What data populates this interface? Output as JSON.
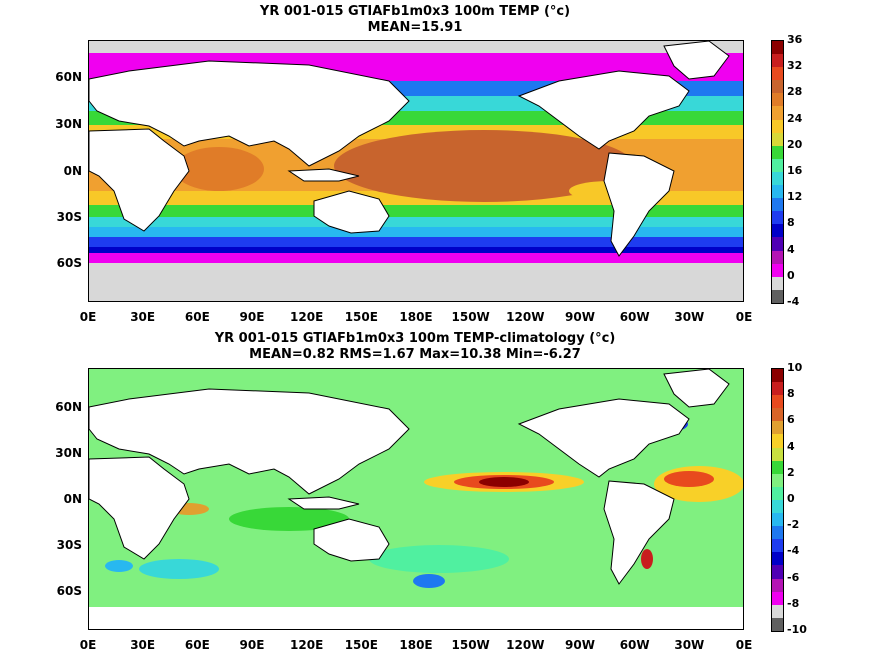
{
  "chart_data": [
    {
      "type": "heatmap",
      "title": "YR 001-015 GTIAFb1m0x3 100m TEMP (°c)",
      "subtitle": "MEAN=15.91",
      "x_ticks": [
        "0E",
        "30E",
        "60E",
        "90E",
        "120E",
        "150E",
        "180E",
        "150W",
        "120W",
        "90W",
        "60W",
        "30W",
        "0E"
      ],
      "y_ticks": [
        "60N",
        "30N",
        "0N",
        "30S",
        "60S"
      ],
      "colorbar_ticks": [
        "36",
        "32",
        "28",
        "24",
        "20",
        "16",
        "12",
        "8",
        "4",
        "0",
        "-4"
      ],
      "colorbar_colors": [
        "#8b0000",
        "#c81e1e",
        "#e84a1e",
        "#c8642d",
        "#e07c28",
        "#f0a030",
        "#f8c828",
        "#d8d838",
        "#38d838",
        "#50f0a0",
        "#38d8d8",
        "#28b8f0",
        "#1e78f0",
        "#1e3cf0",
        "#0000c8",
        "#5000b4",
        "#b414b4",
        "#f000f0",
        "#d8d8d8",
        "#606060"
      ],
      "land_color": "#ffffff"
    },
    {
      "type": "heatmap",
      "title": "YR 001-015 GTIAFb1m0x3 100m TEMP-climatology (°c)",
      "subtitle": "MEAN=0.82  RMS=1.67  Max=10.38  Min=-6.27",
      "x_ticks": [
        "0E",
        "30E",
        "60E",
        "90E",
        "120E",
        "150E",
        "180E",
        "150W",
        "120W",
        "90W",
        "60W",
        "30W",
        "0E"
      ],
      "y_ticks": [
        "60N",
        "30N",
        "0N",
        "30S",
        "60S"
      ],
      "colorbar_ticks": [
        "10",
        "8",
        "6",
        "4",
        "2",
        "0",
        "-2",
        "-4",
        "-6",
        "-8",
        "-10"
      ],
      "colorbar_colors": [
        "#8b0000",
        "#c81e1e",
        "#e84a1e",
        "#d86428",
        "#e0a030",
        "#f8d028",
        "#c8e040",
        "#38d838",
        "#80f080",
        "#50f0a0",
        "#38d8d8",
        "#28b8f0",
        "#1e78f0",
        "#1e3cf0",
        "#0000c8",
        "#5000b4",
        "#b414b4",
        "#f000f0",
        "#d8d8d8",
        "#606060"
      ],
      "land_color": "#ffffff"
    }
  ]
}
